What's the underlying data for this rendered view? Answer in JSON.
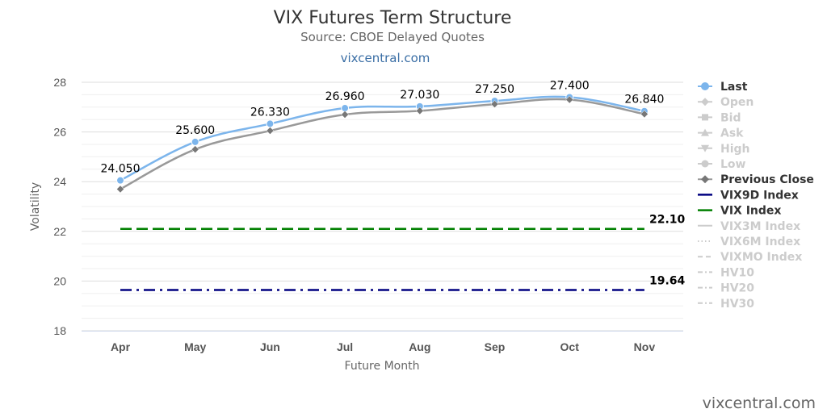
{
  "chart_data": {
    "type": "line",
    "title": "VIX Futures Term Structure",
    "subtitle": "Source: CBOE Delayed Quotes",
    "credit_top": "vixcentral.com",
    "credit_bottom": "vixcentral.com",
    "xlabel": "Future Month",
    "ylabel": "Volatility",
    "categories": [
      "Apr",
      "May",
      "Jun",
      "Jul",
      "Aug",
      "Sep",
      "Oct",
      "Nov"
    ],
    "ylim": [
      18,
      28
    ],
    "yticks": [
      18,
      20,
      22,
      24,
      26,
      28
    ],
    "grid": true,
    "legend_position": "right",
    "series": [
      {
        "name": "Last",
        "type": "line",
        "color": "#7cb5ec",
        "active": true,
        "marker": "circle",
        "values": [
          24.05,
          25.6,
          26.33,
          26.96,
          27.03,
          27.25,
          27.4,
          26.84
        ],
        "labels": [
          "24.050",
          "25.600",
          "26.330",
          "26.960",
          "27.030",
          "27.250",
          "27.400",
          "26.840"
        ]
      },
      {
        "name": "Open",
        "active": false,
        "legend_symbol": "diamond-line"
      },
      {
        "name": "Bid",
        "active": false,
        "legend_symbol": "square-line"
      },
      {
        "name": "Ask",
        "active": false,
        "legend_symbol": "triangle-line"
      },
      {
        "name": "High",
        "active": false,
        "legend_symbol": "triangle-down-line"
      },
      {
        "name": "Low",
        "active": false,
        "legend_symbol": "circle-line"
      },
      {
        "name": "Previous Close",
        "type": "line",
        "color": "#999999",
        "active": true,
        "marker": "diamond",
        "values": [
          23.7,
          25.3,
          26.05,
          26.7,
          26.85,
          27.12,
          27.3,
          26.72
        ]
      },
      {
        "name": "VIX9D Index",
        "type": "hline",
        "color": "#000080",
        "active": true,
        "dash": "dashdot",
        "value": 19.64,
        "label": "19.64"
      },
      {
        "name": "VIX Index",
        "type": "hline",
        "color": "#008000",
        "active": true,
        "dash": "dash",
        "value": 22.1,
        "label": "22.10"
      },
      {
        "name": "VIX3M Index",
        "active": false,
        "legend_symbol": "solid"
      },
      {
        "name": "VIX6M Index",
        "active": false,
        "legend_symbol": "dot"
      },
      {
        "name": "VIXMO Index",
        "active": false,
        "legend_symbol": "dash"
      },
      {
        "name": "HV10",
        "active": false,
        "legend_symbol": "dashdot"
      },
      {
        "name": "HV20",
        "active": false,
        "legend_symbol": "dashdot"
      },
      {
        "name": "HV30",
        "active": false,
        "legend_symbol": "dashdot"
      }
    ],
    "colors": {
      "inactive": "#cccccc",
      "grid": "#e6e6e6",
      "axis": "#ccd6eb",
      "active_text": "#333333"
    }
  }
}
